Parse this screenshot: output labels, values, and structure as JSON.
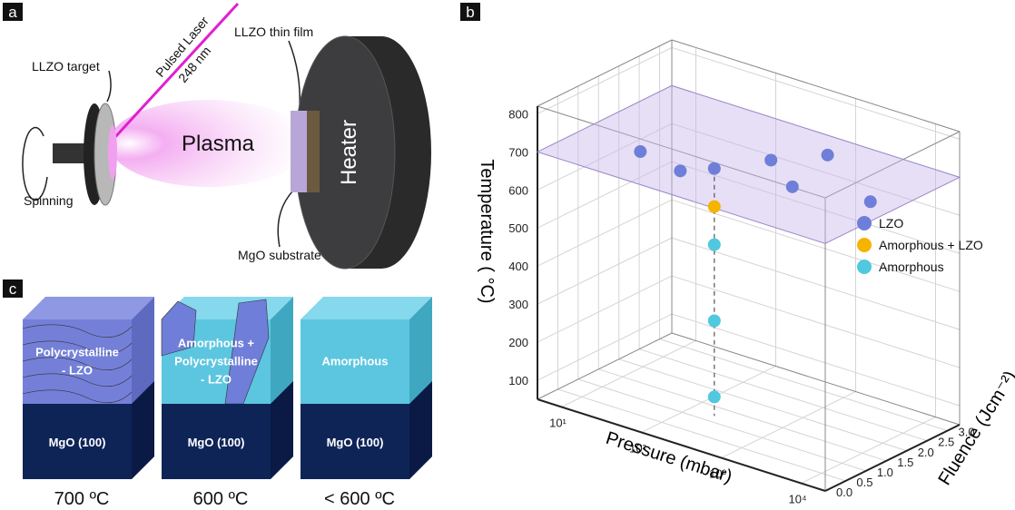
{
  "panel_a": {
    "label": "a",
    "target": "LLZO target",
    "laser": "Pulsed Laser",
    "wavelength": "248 nm",
    "plasma": "Plasma",
    "film": "LLZO thin film",
    "heater": "Heater",
    "spinning": "Spinning",
    "substrate": "MgO substrate"
  },
  "panel_c": {
    "label": "c",
    "blocks": [
      {
        "top_layer": [
          "Polycrystalline",
          "- LZO"
        ],
        "bottom_layer": "MgO (100)",
        "temperature": "700 ºC"
      },
      {
        "top_layer": [
          "Amorphous +",
          "Polycrystalline",
          "- LZO"
        ],
        "bottom_layer": "MgO (100)",
        "temperature": "600 ºC"
      },
      {
        "top_layer": [
          "Amorphous"
        ],
        "bottom_layer": "MgO (100)",
        "temperature": "< 600 ºC"
      }
    ]
  },
  "chart_data": {
    "type": "scatter3d",
    "label": "b",
    "x_label": "Pressure (mbar)",
    "y_label": "Fluence (Jcm⁻²)",
    "z_label": "Temperature ( °C)",
    "x_scale": "log",
    "xlim": [
      5,
      20000
    ],
    "xticks": [
      {
        "value": 10,
        "label": "10¹"
      },
      {
        "value": 100,
        "label": "10²"
      },
      {
        "value": 1000,
        "label": "10³"
      },
      {
        "value": 10000,
        "label": "10⁴"
      }
    ],
    "ylim": [
      0,
      3.3
    ],
    "yticks": [
      {
        "value": 0,
        "label": "0.0"
      },
      {
        "value": 0.5,
        "label": "0.5"
      },
      {
        "value": 1,
        "label": "1.0"
      },
      {
        "value": 1.5,
        "label": "1.5"
      },
      {
        "value": 2,
        "label": "2.0"
      },
      {
        "value": 2.5,
        "label": "2.5"
      },
      {
        "value": 3,
        "label": "3.0"
      }
    ],
    "zlim": [
      50,
      820
    ],
    "zticks": [
      100,
      200,
      300,
      400,
      500,
      600,
      700,
      800
    ],
    "grid": true,
    "legend": "right",
    "series": [
      {
        "name": "LZO",
        "color": "#6f7ed8",
        "x": [
          30,
          120,
          200,
          400,
          900,
          1500,
          10000
        ],
        "y": [
          1.0,
          0.8,
          1.2,
          2.0,
          2.7,
          1.4,
          1.7
        ],
        "z": [
          700,
          700,
          700,
          700,
          700,
          700,
          700
        ]
      },
      {
        "name": "Amorphous + LZO",
        "color": "#f6b300",
        "x": [
          200
        ],
        "y": [
          1.2
        ],
        "z": [
          600
        ]
      },
      {
        "name": "Amorphous",
        "color": "#4fc8e0",
        "x": [
          200,
          200,
          200
        ],
        "y": [
          1.2,
          1.2,
          1.2
        ],
        "z": [
          500,
          300,
          100
        ]
      }
    ]
  }
}
